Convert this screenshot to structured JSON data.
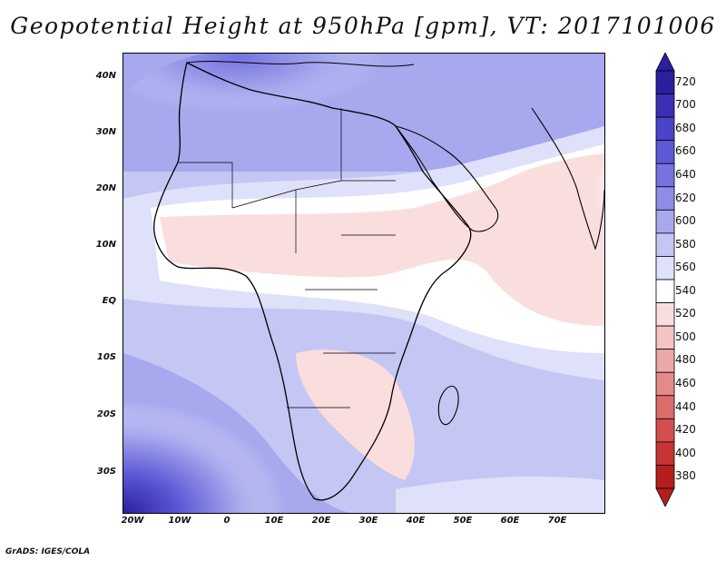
{
  "title": "Geopotential Height at 950hPa [gpm], VT: 2017101006",
  "credit": "GrADS: IGES/COLA",
  "map": {
    "lat_labels": [
      "40N",
      "30N",
      "20N",
      "10N",
      "EQ",
      "10S",
      "20S",
      "30S"
    ],
    "lat_values": [
      40,
      30,
      20,
      10,
      0,
      -10,
      -20,
      -30
    ],
    "lon_labels": [
      "20W",
      "10W",
      "0",
      "10E",
      "20E",
      "30E",
      "40E",
      "50E",
      "60E",
      "70E"
    ],
    "lon_values": [
      -20,
      -10,
      0,
      10,
      20,
      30,
      40,
      50,
      60,
      70
    ],
    "lat_range": [
      -36,
      45
    ],
    "lon_range": [
      -22,
      80
    ]
  },
  "colorbar": {
    "levels": [
      "720",
      "700",
      "680",
      "660",
      "640",
      "620",
      "600",
      "580",
      "560",
      "540",
      "520",
      "500",
      "480",
      "460",
      "440",
      "420",
      "400",
      "380"
    ],
    "colors": [
      "#2b1fa0",
      "#3a2fb5",
      "#4a44c8",
      "#5c5ad6",
      "#7473e0",
      "#8d8de8",
      "#a7a8ee",
      "#c4c6f4",
      "#dfe1fa",
      "#ffffff",
      "#fadede",
      "#f4c4c4",
      "#eca8a8",
      "#e48a8a",
      "#dc6c6c",
      "#d34f4f",
      "#c83434",
      "#b51e1e"
    ],
    "top_cap": "#2b1fa0",
    "bottom_cap": "#b51e1e"
  }
}
